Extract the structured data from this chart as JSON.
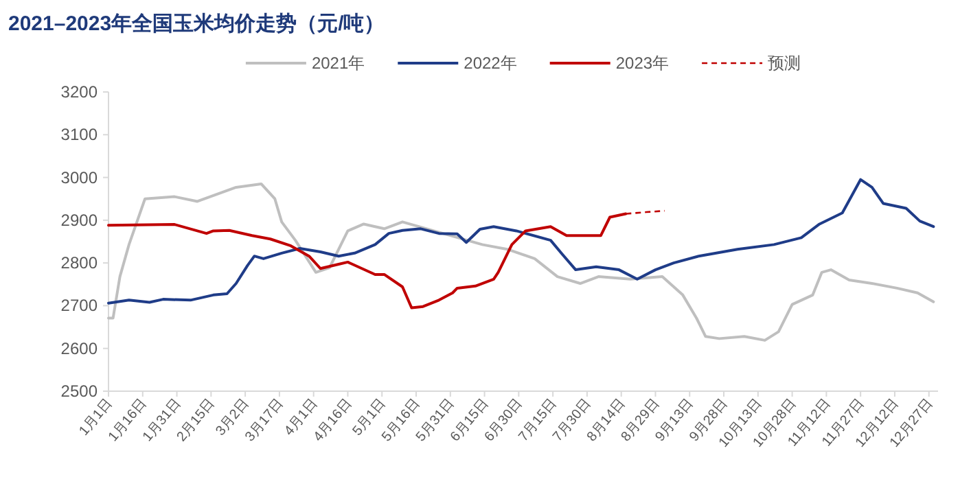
{
  "chart_data": {
    "type": "line",
    "title": "2021–2023年全国玉米均价走势（元/吨）",
    "xlim": [
      "--01-01",
      "--12-31"
    ],
    "xticks": [
      {
        "value": "--01-01",
        "label": "1月1日"
      },
      {
        "value": "--01-16",
        "label": "1月16日"
      },
      {
        "value": "--01-31",
        "label": "1月31日"
      },
      {
        "value": "--02-15",
        "label": "2月15日"
      },
      {
        "value": "--03-02",
        "label": "3月2日"
      },
      {
        "value": "--03-17",
        "label": "3月17日"
      },
      {
        "value": "--04-01",
        "label": "4月1日"
      },
      {
        "value": "--04-16",
        "label": "4月16日"
      },
      {
        "value": "--05-01",
        "label": "5月1日"
      },
      {
        "value": "--05-16",
        "label": "5月16日"
      },
      {
        "value": "--05-31",
        "label": "5月31日"
      },
      {
        "value": "--06-15",
        "label": "6月15日"
      },
      {
        "value": "--06-30",
        "label": "6月30日"
      },
      {
        "value": "--07-15",
        "label": "7月15日"
      },
      {
        "value": "--07-30",
        "label": "7月30日"
      },
      {
        "value": "--08-14",
        "label": "8月14日"
      },
      {
        "value": "--08-29",
        "label": "8月29日"
      },
      {
        "value": "--09-13",
        "label": "9月13日"
      },
      {
        "value": "--09-28",
        "label": "9月28日"
      },
      {
        "value": "--10-13",
        "label": "10月13日"
      },
      {
        "value": "--10-28",
        "label": "10月28日"
      },
      {
        "value": "--11-12",
        "label": "11月12日"
      },
      {
        "value": "--11-27",
        "label": "11月27日"
      },
      {
        "value": "--12-12",
        "label": "12月12日"
      },
      {
        "value": "--12-27",
        "label": "12月27日"
      }
    ],
    "ylim": [
      2500,
      3200
    ],
    "yticks": [
      2500,
      2600,
      2700,
      2800,
      2900,
      3000,
      3100,
      3200
    ],
    "legend": "top",
    "grid": false,
    "series": [
      {
        "name": "2021年",
        "color": "#bfbfbf",
        "x": [
          "--01-01",
          "--01-03",
          "--01-06",
          "--01-10",
          "--01-17",
          "--01-30",
          "--02-09",
          "--02-26",
          "--03-09",
          "--03-15",
          "--03-18",
          "--03-24",
          "--04-02",
          "--04-08",
          "--04-16",
          "--04-23",
          "--05-02",
          "--05-10",
          "--06-14",
          "--06-25",
          "--07-07",
          "--07-17",
          "--07-27",
          "--08-04",
          "--08-18",
          "--09-01",
          "--09-10",
          "--09-16",
          "--09-20",
          "--09-26",
          "--10-07",
          "--10-16",
          "--10-22",
          "--10-28",
          "--11-06",
          "--11-10",
          "--11-14",
          "--11-22",
          "--12-02",
          "--12-13",
          "--12-22",
          "--12-29"
        ],
        "values": [
          2671,
          2671,
          2768,
          2843,
          2950,
          2955,
          2944,
          2977,
          2985,
          2950,
          2896,
          2853,
          2778,
          2789,
          2875,
          2891,
          2880,
          2896,
          2843,
          2832,
          2810,
          2768,
          2752,
          2768,
          2762,
          2768,
          2725,
          2671,
          2628,
          2623,
          2628,
          2619,
          2639,
          2703,
          2725,
          2778,
          2784,
          2760,
          2752,
          2741,
          2730,
          2709
        ]
      },
      {
        "name": "2022年",
        "color": "#1f3c88",
        "x": [
          "--01-01",
          "--01-10",
          "--01-19",
          "--01-25",
          "--02-06",
          "--02-16",
          "--02-22",
          "--02-26",
          "--03-03",
          "--03-06",
          "--03-10",
          "--03-18",
          "--03-26",
          "--04-04",
          "--04-12",
          "--04-19",
          "--04-28",
          "--05-04",
          "--05-10",
          "--05-18",
          "--05-26",
          "--06-03",
          "--06-07",
          "--06-13",
          "--06-19",
          "--06-29",
          "--07-14",
          "--07-19",
          "--07-25",
          "--08-03",
          "--08-13",
          "--08-21",
          "--08-29",
          "--09-06",
          "--09-17",
          "--10-04",
          "--10-20",
          "--11-01",
          "--11-09",
          "--11-19",
          "--11-27",
          "--12-02",
          "--12-07",
          "--12-17",
          "--12-23",
          "--12-29"
        ],
        "values": [
          2706,
          2713,
          2708,
          2715,
          2713,
          2725,
          2728,
          2752,
          2794,
          2816,
          2810,
          2823,
          2834,
          2826,
          2816,
          2823,
          2843,
          2869,
          2876,
          2880,
          2869,
          2868,
          2848,
          2879,
          2885,
          2875,
          2853,
          2821,
          2784,
          2791,
          2784,
          2762,
          2784,
          2800,
          2816,
          2832,
          2843,
          2859,
          2891,
          2917,
          2995,
          2977,
          2939,
          2928,
          2898,
          2885
        ]
      },
      {
        "name": "2023年",
        "color": "#c00000",
        "x": [
          "--01-01",
          "--01-30",
          "--02-13",
          "--02-16",
          "--02-23",
          "--03-05",
          "--03-13",
          "--03-22",
          "--03-30",
          "--04-04",
          "--04-12",
          "--04-16",
          "--04-28",
          "--05-02",
          "--05-10",
          "--05-14",
          "--05-19",
          "--05-26",
          "--06-01",
          "--06-03",
          "--06-11",
          "--06-19",
          "--06-21",
          "--06-27",
          "--07-03",
          "--07-14",
          "--07-21",
          "--08-05",
          "--08-09",
          "--08-16"
        ],
        "values": [
          2888,
          2890,
          2869,
          2875,
          2876,
          2864,
          2856,
          2840,
          2816,
          2787,
          2797,
          2802,
          2773,
          2773,
          2744,
          2695,
          2698,
          2713,
          2730,
          2741,
          2746,
          2762,
          2778,
          2843,
          2875,
          2885,
          2864,
          2864,
          2907,
          2915
        ]
      },
      {
        "name": "预测",
        "color": "#c00000",
        "line_style": "dashed",
        "x": [
          "--08-16",
          "--08-25",
          "--09-02"
        ],
        "values": [
          2915,
          2919,
          2922
        ]
      }
    ]
  }
}
